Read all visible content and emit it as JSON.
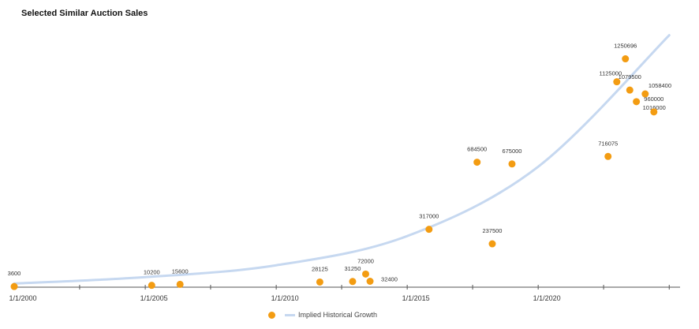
{
  "chart_data": {
    "type": "scatter",
    "title": "Selected Similar Auction Sales",
    "xlabel": "",
    "ylabel": "",
    "x_ticks": [
      "1/1/2000",
      "1/1/2005",
      "1/1/2010",
      "1/1/2015",
      "1/1/2020"
    ],
    "xlim": [
      "2000-01-01",
      "2025-06-01"
    ],
    "ylim": [
      0,
      1400000
    ],
    "grid": false,
    "legend": "bottom",
    "series": [
      {
        "name": "",
        "color": "#F39C12",
        "points": [
          {
            "x": "2000-01-01",
            "y": 3600,
            "label": "3600"
          },
          {
            "x": "2005-04-01",
            "y": 10200,
            "label": "10200"
          },
          {
            "x": "2006-05-01",
            "y": 15600,
            "label": "15600"
          },
          {
            "x": "2011-09-01",
            "y": 28125,
            "label": "28125"
          },
          {
            "x": "2012-12-01",
            "y": 31250,
            "label": "31250"
          },
          {
            "x": "2013-06-01",
            "y": 72000,
            "label": "72000"
          },
          {
            "x": "2013-08-01",
            "y": 32400,
            "label": "32400"
          },
          {
            "x": "2015-11-01",
            "y": 317000,
            "label": "317000"
          },
          {
            "x": "2017-09-01",
            "y": 684500,
            "label": "684500"
          },
          {
            "x": "2018-04-01",
            "y": 237500,
            "label": "237500"
          },
          {
            "x": "2019-01-01",
            "y": 675000,
            "label": "675000"
          },
          {
            "x": "2022-09-01",
            "y": 716075,
            "label": "716075"
          },
          {
            "x": "2023-01-01",
            "y": 1125000,
            "label": "1125000"
          },
          {
            "x": "2023-05-01",
            "y": 1250696,
            "label": "1250696"
          },
          {
            "x": "2023-07-01",
            "y": 1079500,
            "label": "1079500"
          },
          {
            "x": "2023-10-01",
            "y": 1016000,
            "label": "1016000"
          },
          {
            "x": "2024-02-01",
            "y": 1058400,
            "label": "1058400"
          },
          {
            "x": "2024-06-01",
            "y": 960000,
            "label": "960000"
          }
        ]
      },
      {
        "name": "Implied Historical Growth",
        "color": "#c6d8f0",
        "type": "trend",
        "points": [
          {
            "x": "2000-01-01",
            "y": 20000
          },
          {
            "x": "2005-01-01",
            "y": 55000
          },
          {
            "x": "2010-01-01",
            "y": 120000
          },
          {
            "x": "2015-01-01",
            "y": 280000
          },
          {
            "x": "2020-01-01",
            "y": 660000
          },
          {
            "x": "2025-01-01",
            "y": 1380000
          }
        ]
      }
    ]
  }
}
